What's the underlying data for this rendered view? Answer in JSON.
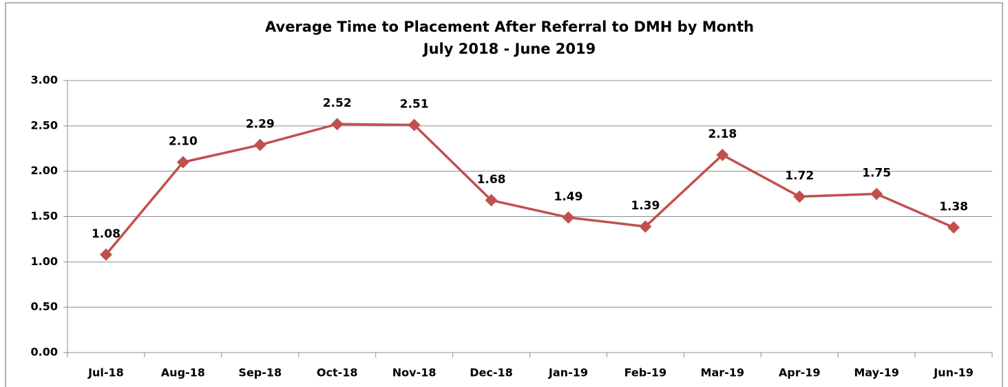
{
  "chart_data": {
    "type": "line",
    "title": "Average Time to Placement After Referral to DMH by Month",
    "subtitle": "July 2018 - June 2019",
    "categories": [
      "Jul-18",
      "Aug-18",
      "Sep-18",
      "Oct-18",
      "Nov-18",
      "Dec-18",
      "Jan-19",
      "Feb-19",
      "Mar-19",
      "Apr-19",
      "May-19",
      "Jun-19"
    ],
    "series": [
      {
        "name": "Average Time to Placement",
        "color": "#c0504d",
        "values": [
          1.08,
          2.1,
          2.29,
          2.52,
          2.51,
          1.68,
          1.49,
          1.39,
          2.18,
          1.72,
          1.75,
          1.38
        ],
        "value_labels": [
          "1.08",
          "2.10",
          "2.29",
          "2.52",
          "2.51",
          "1.68",
          "1.49",
          "1.39",
          "2.18",
          "1.72",
          "1.75",
          "1.38"
        ]
      }
    ],
    "ylim": [
      0,
      3
    ],
    "yticks": [
      {
        "value": 0,
        "label": "0.00"
      },
      {
        "value": 0.5,
        "label": "0.50"
      },
      {
        "value": 1,
        "label": "1.00"
      },
      {
        "value": 1.5,
        "label": "1.50"
      },
      {
        "value": 2,
        "label": "2.00"
      },
      {
        "value": 2.5,
        "label": "2.50"
      },
      {
        "value": 3,
        "label": "3.00"
      }
    ],
    "grid": true
  }
}
